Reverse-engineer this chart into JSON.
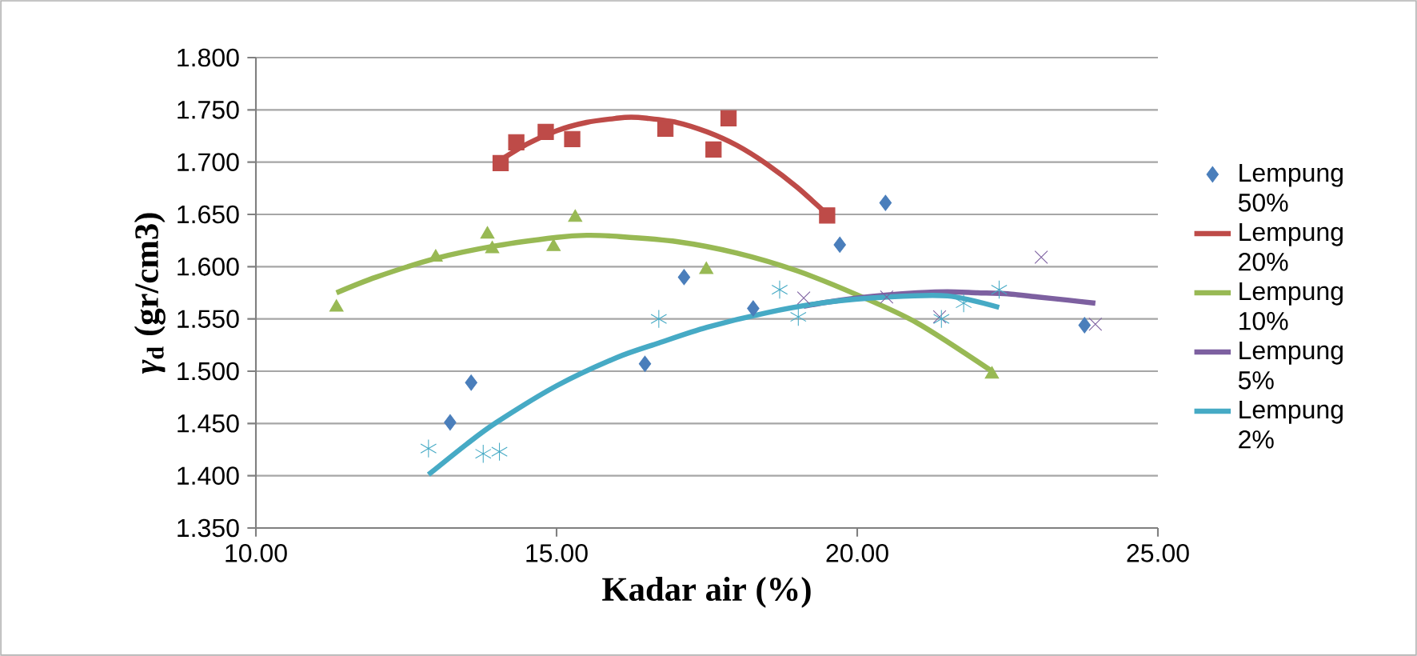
{
  "chart_data": {
    "type": "scatter",
    "xlabel": "Kadar air (%)",
    "ylabel": "*γ*$_{d}$  (gr/cm3)",
    "xlim": [
      10,
      25
    ],
    "xticks": [
      {
        "value": 10,
        "label": "10.00"
      },
      {
        "value": 15,
        "label": "15.00"
      },
      {
        "value": 20,
        "label": "20.00"
      },
      {
        "value": 25,
        "label": "25.00"
      }
    ],
    "ylim": [
      1.35,
      1.8
    ],
    "yticks": [
      {
        "value": 1.35,
        "label": "1.350"
      },
      {
        "value": 1.4,
        "label": "1.400"
      },
      {
        "value": 1.45,
        "label": "1.450"
      },
      {
        "value": 1.5,
        "label": "1.500"
      },
      {
        "value": 1.55,
        "label": "1.550"
      },
      {
        "value": 1.6,
        "label": "1.600"
      },
      {
        "value": 1.65,
        "label": "1.650"
      },
      {
        "value": 1.7,
        "label": "1.700"
      },
      {
        "value": 1.75,
        "label": "1.750"
      },
      {
        "value": 1.8,
        "label": "1.800"
      }
    ],
    "grid": "y",
    "legend": "right",
    "series": [
      {
        "name": "Lempung 50%",
        "marker": "diamond",
        "color": "#4a7ebb",
        "x": [
          13.23,
          13.58,
          16.47,
          17.12,
          18.27,
          19.71,
          20.47,
          23.78
        ],
        "values": [
          1.451,
          1.489,
          1.507,
          1.59,
          1.56,
          1.621,
          1.661,
          1.544
        ]
      },
      {
        "marker": "square",
        "color": "#be4b48",
        "x": [
          14.07,
          14.33,
          14.82,
          15.26,
          16.81,
          17.61,
          17.86,
          19.5
        ],
        "values": [
          1.699,
          1.719,
          1.729,
          1.722,
          1.732,
          1.712,
          1.742,
          1.649
        ]
      },
      {
        "marker": "triangle",
        "color": "#98b954",
        "x": [
          11.34,
          12.99,
          13.85,
          13.93,
          14.95,
          15.31,
          17.49,
          22.24
        ],
        "values": [
          1.561,
          1.609,
          1.631,
          1.617,
          1.619,
          1.647,
          1.597,
          1.497
        ]
      },
      {
        "marker": "cross",
        "color": "#7d60a0",
        "x": [
          19.11,
          20.49,
          21.37,
          23.06,
          23.96
        ],
        "values": [
          1.57,
          1.571,
          1.552,
          1.609,
          1.545
        ]
      },
      {
        "color": "#46aac5",
        "x": [
          12.87,
          13.78,
          14.05,
          16.7,
          18.71,
          19.02,
          21.4,
          21.77,
          22.36
        ],
        "values": [
          1.426,
          1.421,
          1.423,
          1.55,
          1.578,
          1.552,
          1.55,
          1.565,
          1.578
        ]
      },
      {
        "name": "Lempung 20%",
        "type": "line",
        "marker": "none",
        "color": "#be4b48",
        "x": [
          14.07,
          14.5,
          15,
          15.5,
          16,
          16.24,
          16.5,
          17,
          17.5,
          18,
          18.5,
          19,
          19.5
        ],
        "values": [
          1.702,
          1.717,
          1.73,
          1.738,
          1.742,
          1.743,
          1.742,
          1.738,
          1.729,
          1.716,
          1.698,
          1.676,
          1.65
        ]
      },
      {
        "name": "Lempung 10%",
        "type": "line",
        "marker": "none",
        "color": "#98b954",
        "x": [
          11.34,
          12,
          13,
          14,
          15,
          15.5,
          16,
          17,
          18,
          19,
          20,
          21,
          22.24
        ],
        "values": [
          1.575,
          1.59,
          1.608,
          1.62,
          1.628,
          1.63,
          1.629,
          1.624,
          1.613,
          1.596,
          1.573,
          1.546,
          1.5
        ]
      },
      {
        "name": "Lempung 5%",
        "type": "line",
        "marker": "none",
        "color": "#7d60a0",
        "x": [
          19.11,
          19.5,
          20,
          20.5,
          21,
          21.5,
          22,
          22.5,
          23,
          23.5,
          23.96
        ],
        "values": [
          1.562,
          1.566,
          1.57,
          1.573,
          1.575,
          1.576,
          1.575,
          1.574,
          1.571,
          1.568,
          1.565
        ]
      },
      {
        "name": "Lempung 2%",
        "type": "line",
        "marker": "none",
        "color": "#46aac5",
        "x": [
          12.87,
          13.5,
          14,
          15,
          16,
          16.7,
          17.5,
          18.5,
          19.5,
          20.5,
          21.5,
          22.36
        ],
        "values": [
          1.401,
          1.43,
          1.451,
          1.486,
          1.513,
          1.527,
          1.542,
          1.556,
          1.566,
          1.571,
          1.572,
          1.561
        ]
      }
    ]
  }
}
